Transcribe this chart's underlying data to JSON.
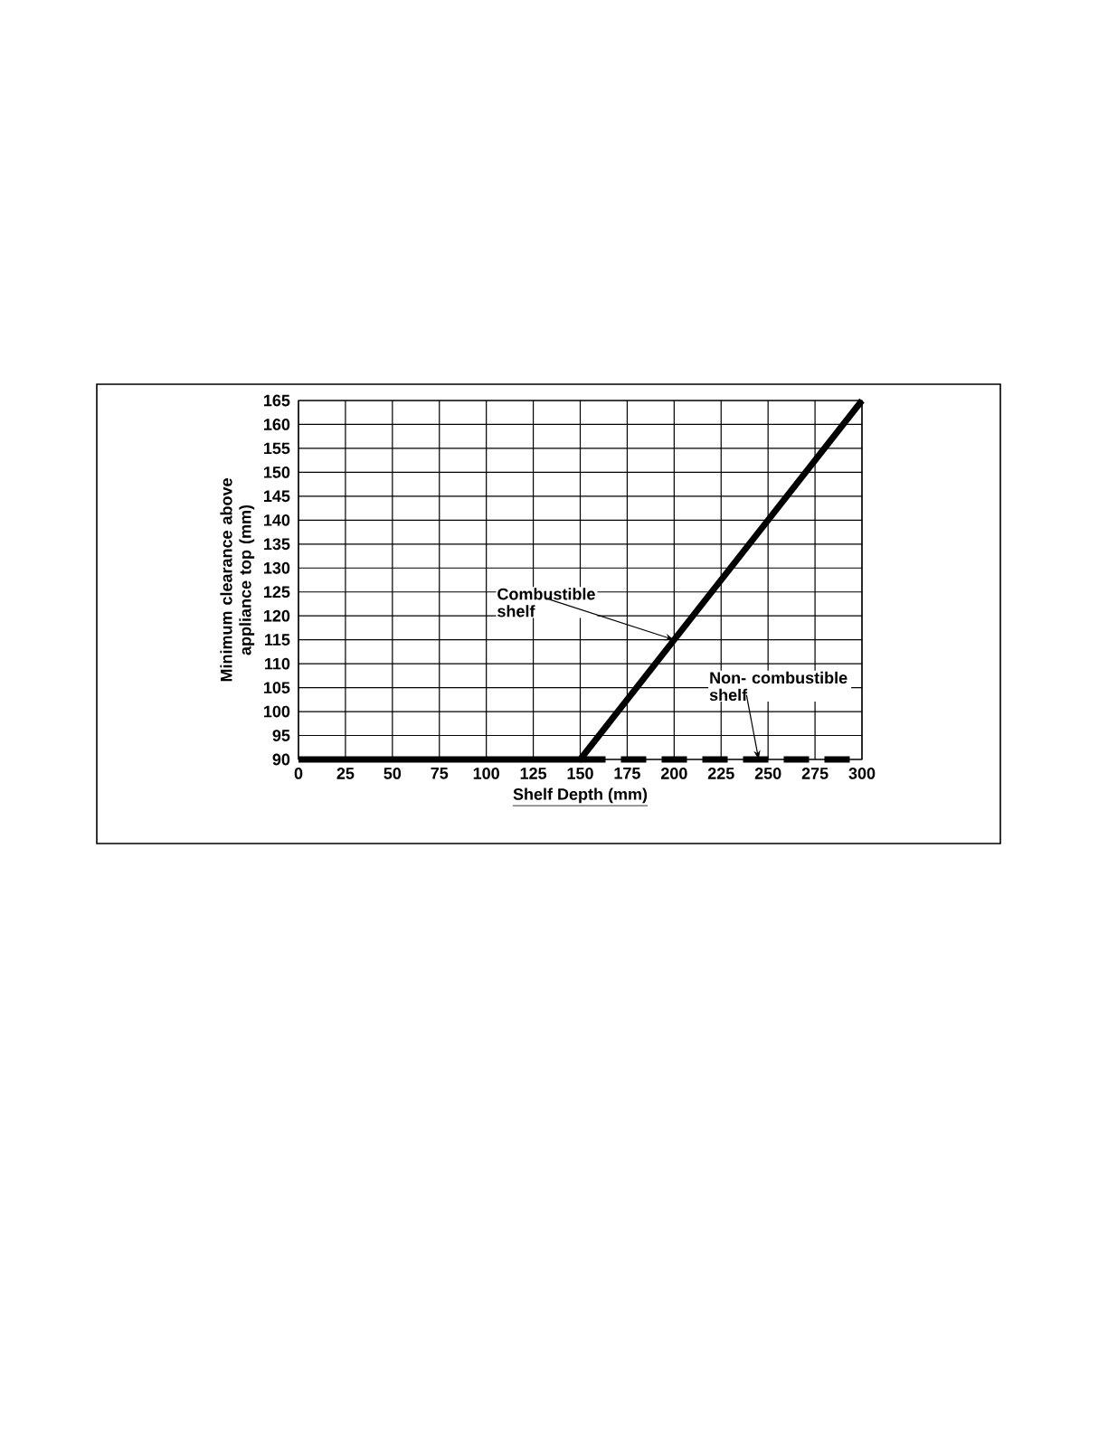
{
  "chart_data": {
    "type": "line",
    "xlabel": "Shelf Depth (mm)",
    "ylabel": "Minimum clearance above appliance top (mm)",
    "xlim": [
      0,
      300
    ],
    "ylim": [
      90,
      165
    ],
    "xticks": [
      0,
      25,
      50,
      75,
      100,
      125,
      150,
      175,
      200,
      225,
      250,
      275,
      300
    ],
    "yticks": [
      90,
      95,
      100,
      105,
      110,
      115,
      120,
      125,
      130,
      135,
      140,
      145,
      150,
      155,
      160,
      165
    ],
    "grid": true,
    "marker": "none",
    "series": [
      {
        "color": "#000000",
        "line_style": "solid",
        "x": [
          0,
          150,
          300
        ],
        "values": [
          90,
          90,
          165
        ]
      },
      {
        "color": "#000000",
        "line_style": "dashed",
        "x": [
          150,
          300
        ],
        "values": [
          90,
          90
        ]
      }
    ],
    "annotations": [
      {
        "text": "Combustible shelf",
        "x": 200,
        "y": 115
      },
      {
        "text": "Non- combustible shelf",
        "x": 245,
        "y": 90
      }
    ]
  }
}
